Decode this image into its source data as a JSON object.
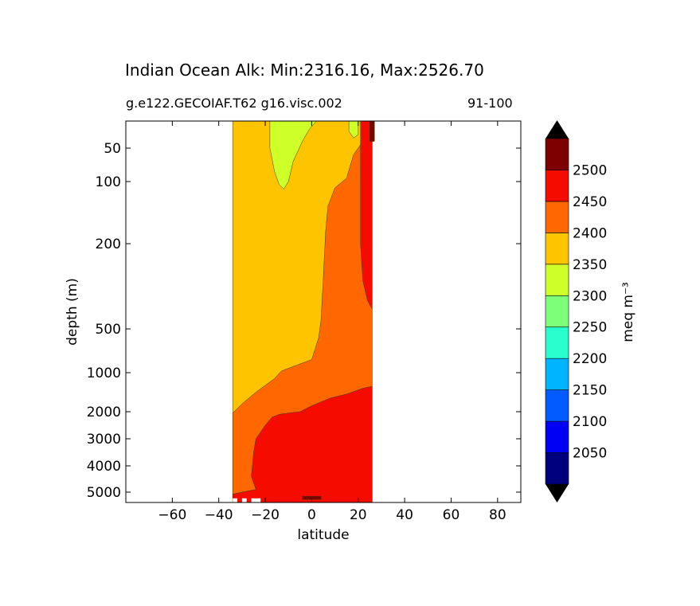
{
  "chart_data": {
    "type": "contour",
    "title": "Indian Ocean Alk: Min:2316.16, Max:2526.70",
    "subtitle_left": "g.e122.GECOIAF.T62 g16.visc.002",
    "subtitle_right": "91-100",
    "xlabel": "latitude",
    "ylabel": "depth (m)",
    "xlim": [
      -80,
      90
    ],
    "ylim_depth": [
      5500,
      10
    ],
    "y_scale": "nonlinear depth (stretched upper ocean)",
    "x_ticks": [
      -60,
      -40,
      -20,
      0,
      20,
      40,
      60,
      80
    ],
    "x_tick_labels": [
      "−60",
      "−40",
      "−20",
      "0",
      "20",
      "40",
      "60",
      "80"
    ],
    "y_ticks": [
      50,
      100,
      200,
      500,
      1000,
      2000,
      3000,
      4000,
      5000
    ],
    "y_tick_labels": [
      "50",
      "100",
      "200",
      "500",
      "1000",
      "2000",
      "3000",
      "4000",
      "5000"
    ],
    "data_extent_lat": [
      -34,
      26
    ],
    "colorbar": {
      "label": "meq m⁻³",
      "levels": [
        2000,
        2050,
        2100,
        2150,
        2200,
        2250,
        2300,
        2350,
        2400,
        2450,
        2500,
        2550
      ],
      "tick_labels": [
        "2050",
        "2100",
        "2150",
        "2200",
        "2250",
        "2300",
        "2350",
        "2400",
        "2450",
        "2500"
      ],
      "colors": [
        "#00007f",
        "#0000f5",
        "#005cff",
        "#00b4ff",
        "#29ffce",
        "#7dff7a",
        "#ceff29",
        "#ffc400",
        "#ff6800",
        "#f50b00",
        "#7f0000"
      ],
      "extend": "both",
      "extend_low_color": "#000000",
      "extend_high_color": "#000000"
    },
    "regions": [
      {
        "name": "2300-2350 surface lens near 15S",
        "level_band": [
          2300,
          2350
        ]
      },
      {
        "name": "2350-2400 upper ocean",
        "level_band": [
          2350,
          2400
        ]
      },
      {
        "name": "2400-2450 intermediate and northern upper",
        "level_band": [
          2400,
          2450
        ]
      },
      {
        "name": "2450-2500 deep water and northern strip",
        "level_band": [
          2450,
          2500
        ]
      },
      {
        "name": "2500+ small patches near 25N and bottom",
        "level_band": [
          2500,
          2550
        ]
      }
    ],
    "grid": false,
    "legend": "colorbar-right"
  }
}
